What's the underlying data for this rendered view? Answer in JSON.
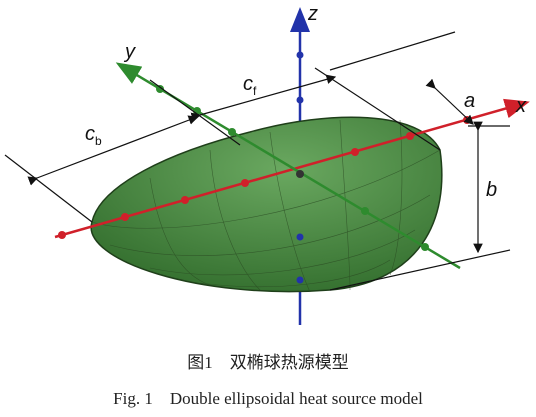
{
  "labels": {
    "z": "z",
    "y": "y",
    "x": "x",
    "a": "a",
    "b": "b",
    "cf": {
      "main": "c",
      "sub": "f"
    },
    "cb": {
      "main": "c",
      "sub": "b"
    }
  },
  "caption": {
    "cn": "图1　双椭球热源模型",
    "en": "Fig. 1　Double ellipsoidal heat source model"
  }
}
